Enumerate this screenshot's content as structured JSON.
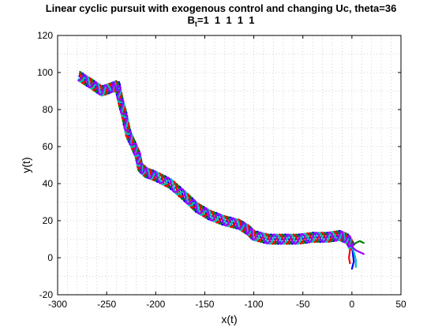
{
  "chart_data": {
    "type": "line",
    "title": "Linear cyclic pursuit with exogenous control and changing Uc, theta=36",
    "subtitle_prefix": "B",
    "subtitle_sub": "t",
    "subtitle_rest": "=1  1  1  1  1",
    "xlabel": "x(t)",
    "ylabel": "y(t)",
    "xlim": [
      -300,
      50
    ],
    "ylim": [
      -20,
      120
    ],
    "xticks": [
      -300,
      -250,
      -200,
      -150,
      -100,
      -50,
      0,
      50
    ],
    "yticks": [
      -20,
      0,
      20,
      40,
      60,
      80,
      100,
      120
    ],
    "grid": true,
    "grid_style": "dotted",
    "center_path": [
      [
        -278,
        98
      ],
      [
        -266,
        94
      ],
      [
        -255,
        90
      ],
      [
        -244,
        92
      ],
      [
        -239,
        93
      ],
      [
        -236,
        85
      ],
      [
        -232,
        77
      ],
      [
        -228,
        67
      ],
      [
        -222,
        60
      ],
      [
        -218,
        55
      ],
      [
        -216,
        49
      ],
      [
        -210,
        46
      ],
      [
        -200,
        44
      ],
      [
        -185,
        40
      ],
      [
        -170,
        33
      ],
      [
        -158,
        27
      ],
      [
        -145,
        23
      ],
      [
        -130,
        20
      ],
      [
        -115,
        18
      ],
      [
        -106,
        15
      ],
      [
        -100,
        12
      ],
      [
        -85,
        10
      ],
      [
        -70,
        10
      ],
      [
        -55,
        10
      ],
      [
        -40,
        11
      ],
      [
        -25,
        11
      ],
      [
        -12,
        12
      ],
      [
        -4,
        10
      ],
      [
        0,
        6
      ]
    ],
    "series": [
      {
        "color": "#0000ff",
        "offset": 0.0,
        "tail": [
          [
            0,
            6
          ],
          [
            1,
            2
          ],
          [
            2,
            -2
          ],
          [
            0,
            -6
          ]
        ]
      },
      {
        "color": "#008000",
        "offset": 1.3,
        "tail": [
          [
            0,
            6
          ],
          [
            4,
            8
          ],
          [
            8,
            9
          ],
          [
            12,
            8
          ]
        ]
      },
      {
        "color": "#ff0000",
        "offset": 2.5,
        "tail": [
          [
            0,
            6
          ],
          [
            -2,
            4
          ],
          [
            -3,
            0
          ],
          [
            -2,
            -3
          ]
        ]
      },
      {
        "color": "#00bfbf",
        "offset": 3.8,
        "tail": [
          [
            0,
            6
          ],
          [
            2,
            3
          ],
          [
            4,
            -1
          ],
          [
            4,
            -5
          ]
        ]
      },
      {
        "color": "#9900ff",
        "offset": 5.0,
        "tail": [
          [
            0,
            6
          ],
          [
            4,
            4
          ],
          [
            8,
            3
          ],
          [
            12,
            2
          ]
        ]
      }
    ]
  }
}
